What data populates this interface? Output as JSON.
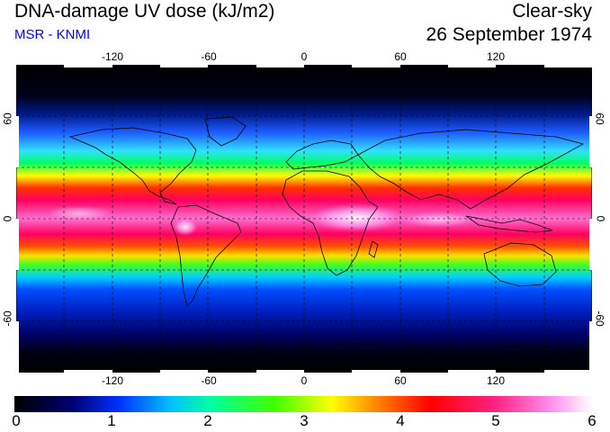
{
  "header": {
    "title": "DNA-damage UV dose (kJ/m2)",
    "subtitle": "MSR - KNMI",
    "condition": "Clear-sky",
    "date": "26 September 1974"
  },
  "map": {
    "projection": "equirectangular",
    "lon_range": [
      -180,
      180
    ],
    "lat_range": [
      -90,
      90
    ],
    "lon_ticks": [
      "-120",
      "-60",
      "0",
      "60",
      "120"
    ],
    "lat_ticks_left": [
      "60",
      "0",
      "-60"
    ],
    "lat_ticks_right": [
      "60",
      "0",
      "-60"
    ],
    "grid": true,
    "field": "DNA-damage UV dose",
    "max_near_equator": 6
  },
  "colorbar": {
    "labels": [
      "0",
      "1",
      "2",
      "3",
      "4",
      "5",
      "6"
    ],
    "range": [
      0,
      6
    ],
    "colors": [
      "#000000",
      "#0000a0",
      "#0040ff",
      "#00ffff",
      "#00ff00",
      "#ffff00",
      "#ff8000",
      "#ff0000",
      "#ff3090",
      "#ff90ff",
      "#ffffff"
    ]
  }
}
